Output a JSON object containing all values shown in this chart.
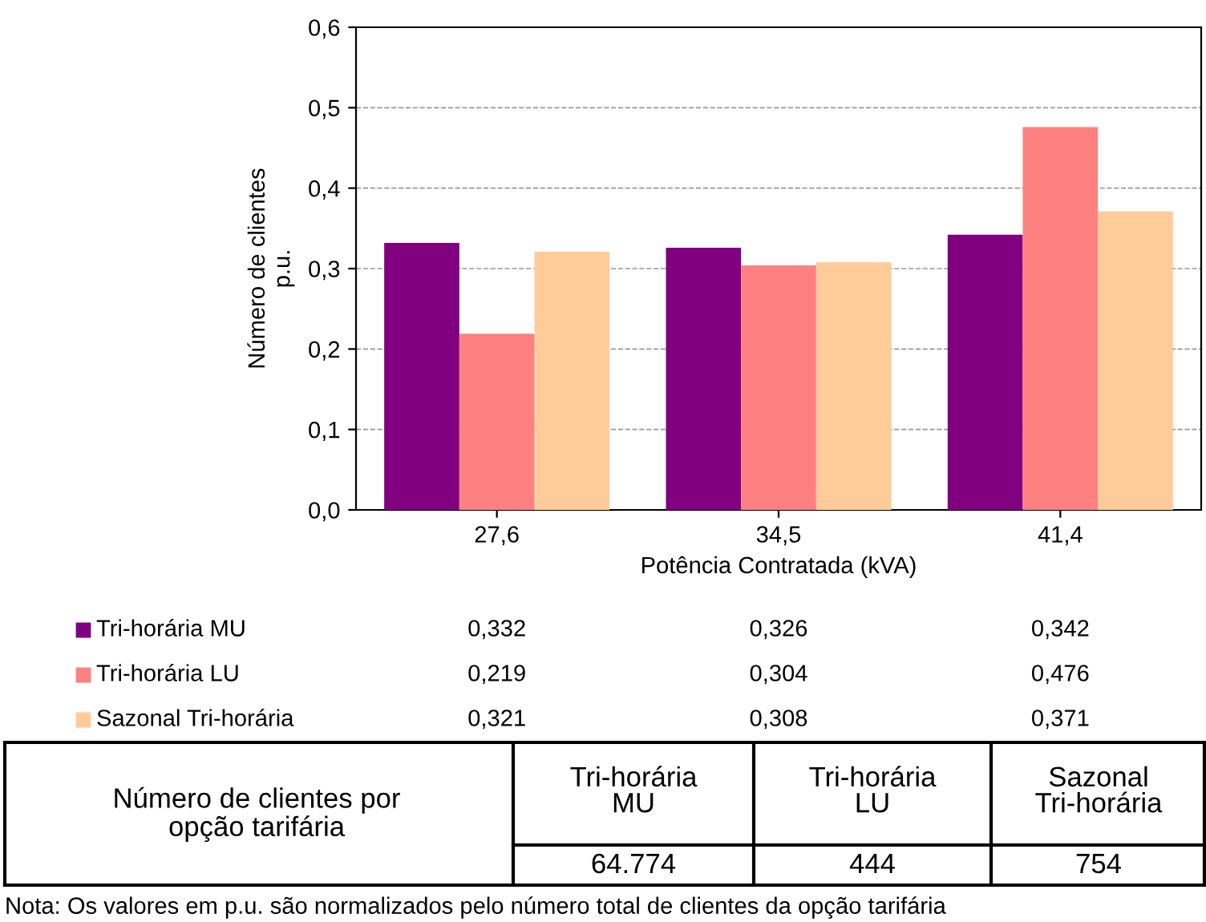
{
  "chart_data": {
    "type": "bar",
    "categories": [
      "27,6",
      "34,5",
      "41,4"
    ],
    "xlabel": "Potência Contratada (kVA)",
    "ylabel": "Número de clientes\np.u.",
    "series": [
      {
        "name": "Tri-horária MU",
        "color": "#800080",
        "values": [
          0.332,
          0.326,
          0.342
        ],
        "value_labels": [
          "0,332",
          "0,326",
          "0,342"
        ]
      },
      {
        "name": "Tri-horária LU",
        "color": "#ff8080",
        "values": [
          0.219,
          0.304,
          0.476
        ],
        "value_labels": [
          "0,219",
          "0,304",
          "0,476"
        ]
      },
      {
        "name": "Sazonal Tri-horária",
        "color": "#ffcc99",
        "values": [
          0.321,
          0.308,
          0.371
        ],
        "value_labels": [
          "0,321",
          "0,308",
          "0,371"
        ]
      }
    ],
    "ylim": [
      0,
      0.6
    ],
    "yticks": [
      {
        "value": 0,
        "label": "0,0"
      },
      {
        "value": 0.1,
        "label": "0,1"
      },
      {
        "value": 0.2,
        "label": "0,2"
      },
      {
        "value": 0.3,
        "label": "0,3"
      },
      {
        "value": 0.4,
        "label": "0,4"
      },
      {
        "value": 0.5,
        "label": "0,5"
      },
      {
        "value": 0.6,
        "label": "0,6"
      }
    ],
    "grid": "y",
    "legend": "bottom",
    "annotations": [
      "Número de clientes por\nopção tarifária",
      "Tri-horária\nMU",
      "Tri-horária\nLU",
      "Sazonal\nTri-horária",
      "64.774",
      "444",
      "754",
      "Nota: Os valores em p.u. são normalizados pelo número total de clientes da opção tarifária"
    ]
  }
}
